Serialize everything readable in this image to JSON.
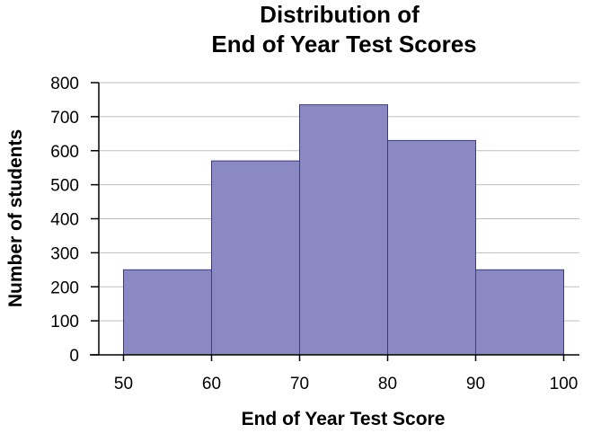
{
  "chart_data": {
    "type": "bar",
    "title_lines": [
      "Distribution of",
      "End of Year Test Scores"
    ],
    "xlabel": "End of Year Test Score",
    "ylabel": "Number of students",
    "bins": [
      {
        "from": 50,
        "to": 60,
        "value": 250
      },
      {
        "from": 60,
        "to": 70,
        "value": 570
      },
      {
        "from": 70,
        "to": 80,
        "value": 735
      },
      {
        "from": 80,
        "to": 90,
        "value": 630
      },
      {
        "from": 90,
        "to": 100,
        "value": 250
      }
    ],
    "xlim": [
      50,
      100
    ],
    "ylim": [
      0,
      800
    ],
    "xticks": [
      50,
      60,
      70,
      80,
      90,
      100
    ],
    "yticks": [
      0,
      100,
      200,
      300,
      400,
      500,
      600,
      700,
      800
    ],
    "grid": true,
    "bar_color": "#8a89c3"
  }
}
